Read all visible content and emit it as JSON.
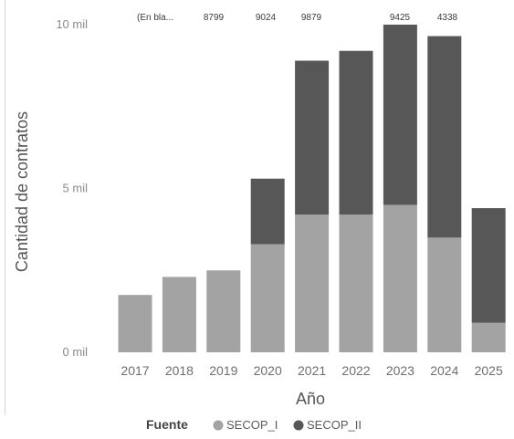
{
  "chart_data": {
    "type": "bar",
    "stacked": true,
    "xlabel": "Año",
    "ylabel": "Cantidad de contratos",
    "ylim": [
      0,
      10000
    ],
    "yticks": [
      {
        "value": 0,
        "label": "0 mil"
      },
      {
        "value": 5000,
        "label": "5 mil"
      },
      {
        "value": 10000,
        "label": "10 mil"
      }
    ],
    "grid": false,
    "legend": {
      "title": "Fuente",
      "placement": "bottom-left"
    },
    "categories": [
      "2017",
      "2018",
      "2019",
      "2020",
      "2021",
      "2022",
      "2023",
      "2024",
      "2025"
    ],
    "series": [
      {
        "name": "SECOP_I",
        "color": "#a3a3a3",
        "values": [
          1750,
          2300,
          2500,
          3300,
          4200,
          4200,
          4500,
          3500,
          900
        ]
      },
      {
        "name": "SECOP_II",
        "color": "#575757",
        "values": [
          0,
          0,
          0,
          2000,
          4700,
          5000,
          5500,
          6150,
          3500
        ]
      }
    ],
    "data_labels": [
      "(En bla...",
      "8799",
      "9024",
      "9879",
      "9425",
      "4338"
    ]
  }
}
